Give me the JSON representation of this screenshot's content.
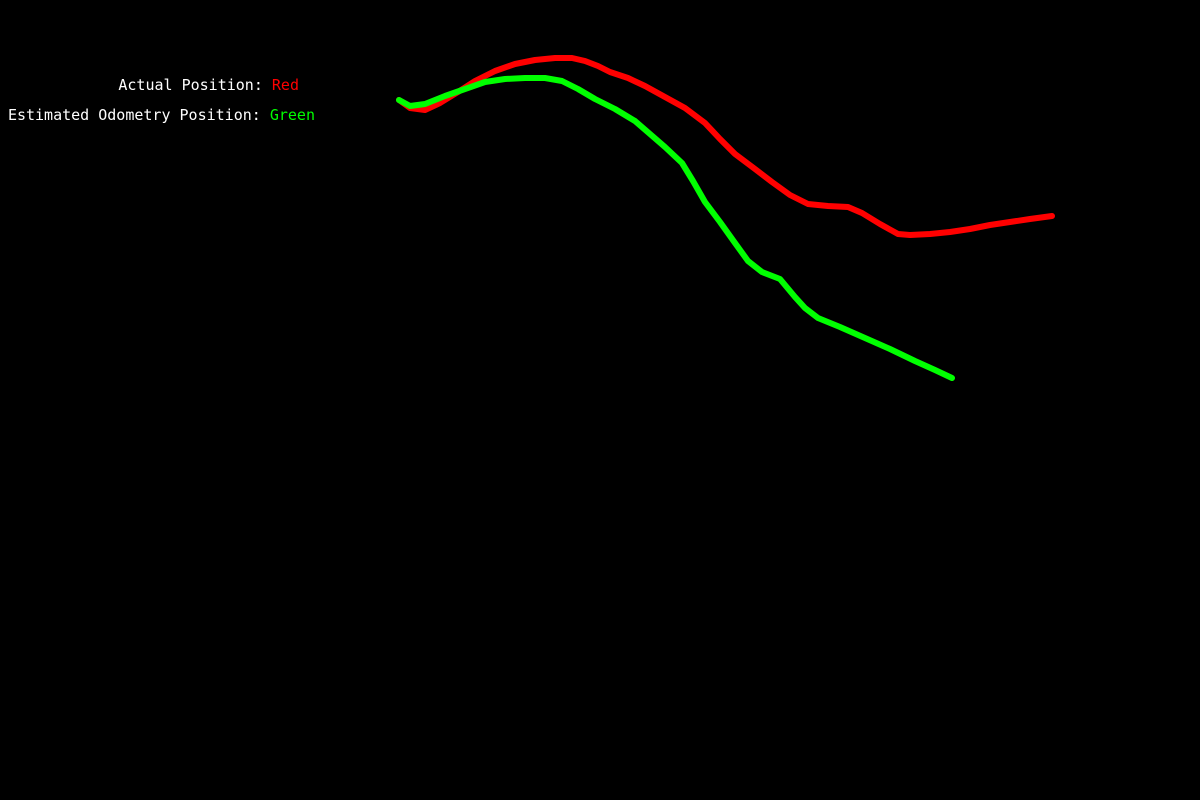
{
  "legend": {
    "actual_label": "Actual Position:",
    "actual_value": "Red",
    "estimated_label": "Estimated Odometry Position:",
    "estimated_value": "Green"
  },
  "colors": {
    "background": "#000000",
    "actual": "#ff0000",
    "estimated": "#00ff00",
    "text": "#ffffff"
  },
  "chart_data": {
    "type": "line",
    "grid": false,
    "series": [
      {
        "name": "Actual Position",
        "color": "#ff0000",
        "points": [
          [
            399,
            700
          ],
          [
            410,
            692
          ],
          [
            425,
            690
          ],
          [
            440,
            697
          ],
          [
            458,
            708
          ],
          [
            475,
            719
          ],
          [
            495,
            729
          ],
          [
            515,
            736
          ],
          [
            535,
            740
          ],
          [
            555,
            742
          ],
          [
            572,
            742
          ],
          [
            585,
            739
          ],
          [
            598,
            734
          ],
          [
            610,
            728
          ],
          [
            628,
            722
          ],
          [
            645,
            714
          ],
          [
            665,
            703
          ],
          [
            685,
            692
          ],
          [
            705,
            677
          ],
          [
            720,
            661
          ],
          [
            735,
            646
          ],
          [
            755,
            631
          ],
          [
            772,
            618
          ],
          [
            790,
            605
          ],
          [
            808,
            596
          ],
          [
            828,
            594
          ],
          [
            848,
            593
          ],
          [
            862,
            587
          ],
          [
            880,
            576
          ],
          [
            898,
            566
          ],
          [
            910,
            565
          ],
          [
            930,
            566
          ],
          [
            950,
            568
          ],
          [
            970,
            571
          ],
          [
            990,
            575
          ],
          [
            1010,
            578
          ],
          [
            1030,
            581
          ],
          [
            1052,
            584
          ]
        ]
      },
      {
        "name": "Estimated Odometry Position",
        "color": "#00ff00",
        "points": [
          [
            399,
            700
          ],
          [
            410,
            694
          ],
          [
            425,
            696
          ],
          [
            445,
            704
          ],
          [
            465,
            711
          ],
          [
            485,
            718
          ],
          [
            505,
            721
          ],
          [
            525,
            722
          ],
          [
            545,
            722
          ],
          [
            562,
            719
          ],
          [
            578,
            711
          ],
          [
            595,
            701
          ],
          [
            615,
            691
          ],
          [
            635,
            679
          ],
          [
            650,
            666
          ],
          [
            665,
            653
          ],
          [
            682,
            637
          ],
          [
            693,
            619
          ],
          [
            705,
            598
          ],
          [
            720,
            578
          ],
          [
            735,
            557
          ],
          [
            748,
            539
          ],
          [
            762,
            528
          ],
          [
            780,
            521
          ],
          [
            795,
            503
          ],
          [
            805,
            492
          ],
          [
            818,
            482
          ],
          [
            840,
            473
          ],
          [
            865,
            462
          ],
          [
            890,
            451
          ],
          [
            915,
            439
          ],
          [
            935,
            430
          ],
          [
            952,
            422
          ]
        ]
      }
    ]
  }
}
